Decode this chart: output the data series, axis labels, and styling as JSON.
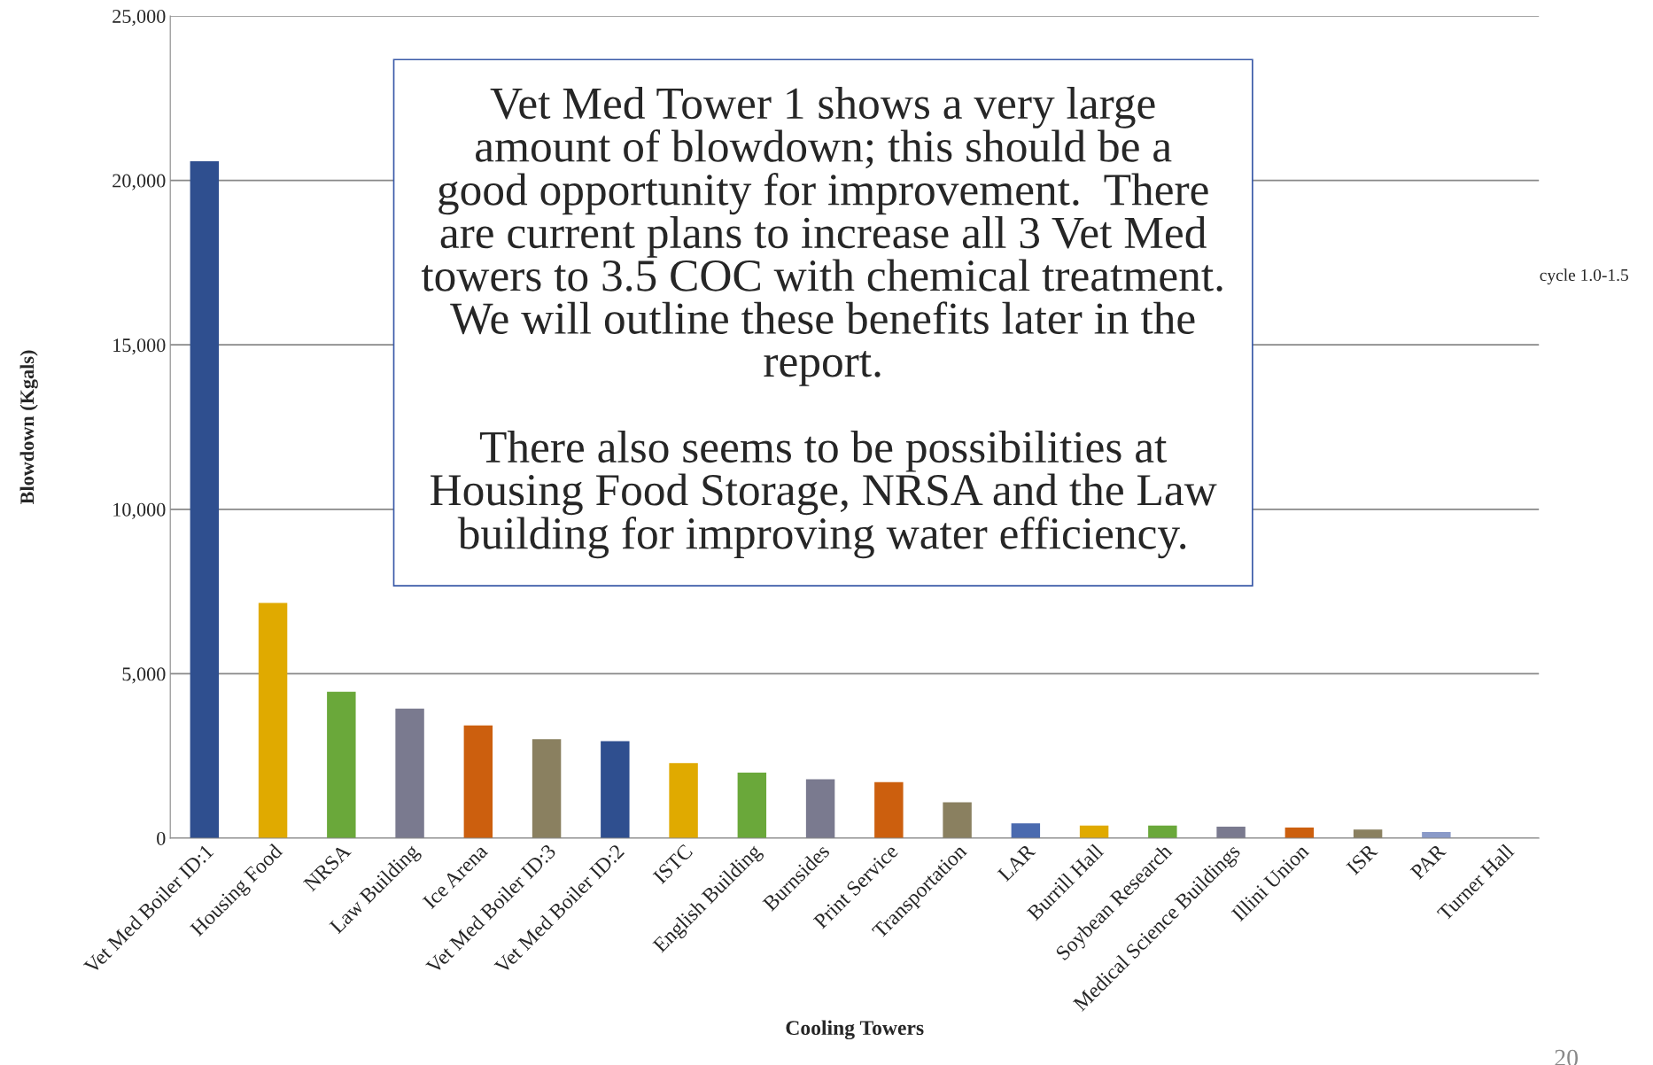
{
  "chart_data": {
    "type": "bar",
    "xlabel": "Cooling Towers",
    "ylabel": "Blowdown (Kgals)",
    "categories": [
      "Vet Med Boiler ID:1",
      "Housing Food",
      "NRSA",
      "Law Building",
      "Ice Arena",
      "Vet Med Boiler ID:3",
      "Vet Med Boiler ID:2",
      "ISTC",
      "English Building",
      "Burnsides",
      "Print Service",
      "Transportation",
      "LAR",
      "Burrill Hall",
      "Soybean Research",
      "Medical Science Buildings",
      "Illini Union",
      "ISR",
      "PAR",
      "Turner Hall"
    ],
    "values": [
      20580,
      7150,
      4450,
      3940,
      3430,
      3010,
      2950,
      2280,
      1990,
      1790,
      1700,
      1090,
      450,
      380,
      380,
      350,
      320,
      260,
      190,
      0
    ],
    "colors": [
      "#2f4f8f",
      "#e0aa00",
      "#6aa83a",
      "#7a7a8f",
      "#cc5f0e",
      "#8a8060",
      "#2f4f8f",
      "#e0aa00",
      "#6aa83a",
      "#7a7a8f",
      "#cc5f0e",
      "#8a8060",
      "#4a6aaf",
      "#e0aa00",
      "#6aa83a",
      "#7a7a8f",
      "#cc5f0e",
      "#8a8060",
      "#8a9ac8",
      "#e0aa00"
    ],
    "ylim": [
      0,
      25000
    ],
    "yticks": [
      {
        "value": 0,
        "label": "0"
      },
      {
        "value": 5000,
        "label": "5,000"
      },
      {
        "value": 10000,
        "label": "10,000"
      },
      {
        "value": 15000,
        "label": "15,000"
      },
      {
        "value": 20000,
        "label": "20,000"
      },
      {
        "value": 25000,
        "label": "25,000"
      }
    ],
    "grid": "y",
    "annotations": [
      "Vet Med Tower 1 shows a very large\namount of blowdown; this should be a\ngood opportunity for improvement.  There\nare current plans to increase all 3 Vet Med\ntowers to 3.5 COC with chemical treatment.\nWe will outline these benefits later in the\nreport.\n\nThere also seems to be possibilities at\nHousing Food Storage, NRSA and the Law\nbuilding for improving water efficiency.",
      "cycle 1.0-1.5",
      "20"
    ]
  }
}
